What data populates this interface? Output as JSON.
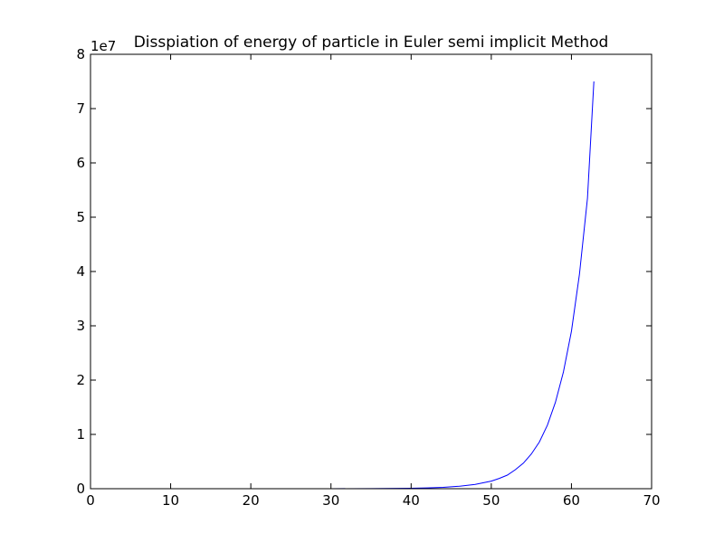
{
  "chart_data": {
    "type": "line",
    "title": "Disspiation of energy of particle in Euler semi implicit Method",
    "xlabel": "",
    "ylabel": "",
    "y_offset_label": "1e7",
    "xlim": [
      0,
      70
    ],
    "ylim": [
      0,
      8
    ],
    "x_ticks": [
      "0",
      "10",
      "20",
      "30",
      "40",
      "50",
      "60",
      "70"
    ],
    "y_ticks": [
      "0",
      "1",
      "2",
      "3",
      "4",
      "5",
      "6",
      "7",
      "8"
    ],
    "grid": false,
    "legend": "none",
    "series": [
      {
        "color": "#0000ff",
        "x": [
          0,
          10,
          20,
          30,
          35,
          40,
          42,
          44,
          46,
          48,
          50,
          51,
          52,
          53,
          54,
          55,
          56,
          57,
          58,
          59,
          60,
          61,
          62,
          62.8
        ],
        "y": [
          0,
          0,
          0,
          0.0005,
          0.002,
          0.008,
          0.015,
          0.026,
          0.045,
          0.08,
          0.14,
          0.19,
          0.25,
          0.35,
          0.47,
          0.64,
          0.86,
          1.17,
          1.59,
          2.15,
          2.9,
          3.95,
          5.35,
          7.5
        ]
      }
    ]
  }
}
